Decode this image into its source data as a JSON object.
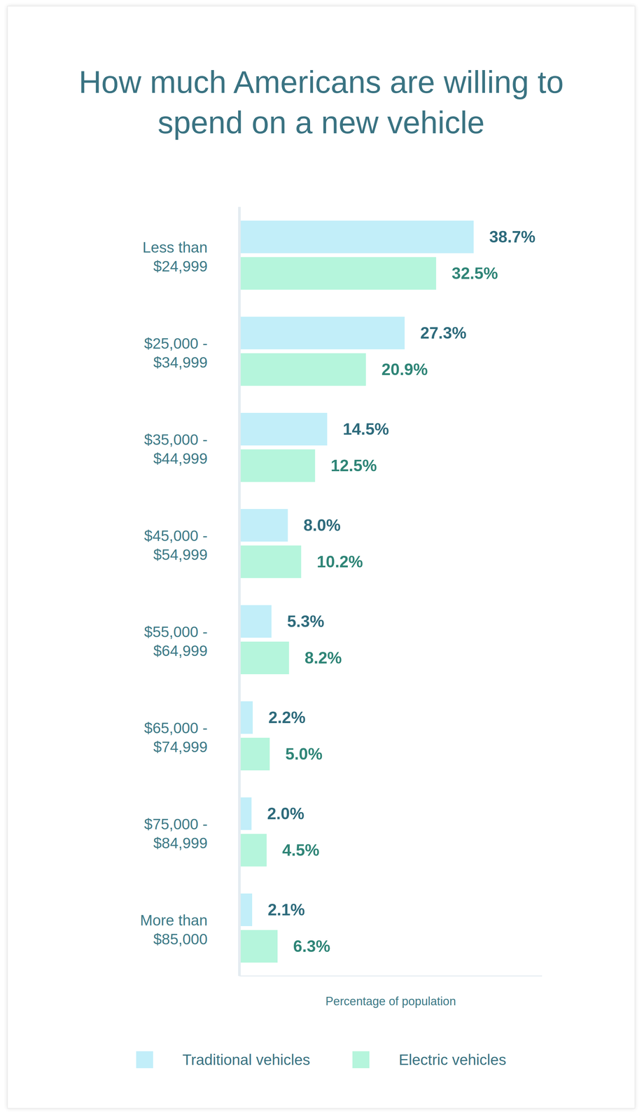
{
  "chart_data": {
    "type": "bar",
    "orientation": "horizontal",
    "title": "How much Americans are willing to spend on a new vehicle",
    "xlabel": "Percentage of population",
    "categories": [
      "Less than $24,999",
      "$25,000 - $34,999",
      "$35,000 - $44,999",
      "$45,000 - $54,999",
      "$55,000 - $64,999",
      "$65,000 - $74,999",
      "$75,000 - $84,999",
      "More than $85,000"
    ],
    "series": [
      {
        "name": "Traditional vehicles",
        "color": "#c2eef9",
        "values": [
          38.7,
          27.3,
          14.5,
          8.0,
          5.3,
          2.2,
          2.0,
          2.1
        ],
        "value_labels": [
          "38.7%",
          "27.3%",
          "14.5%",
          "8.0%",
          "5.3%",
          "2.2%",
          "2.0%",
          "2.1%"
        ]
      },
      {
        "name": "Electric vehicles",
        "color": "#b5f5dc",
        "values": [
          32.5,
          20.9,
          12.5,
          10.2,
          8.2,
          5.0,
          4.5,
          6.3
        ],
        "value_labels": [
          "32.5%",
          "20.9%",
          "12.5%",
          "10.2%",
          "8.2%",
          "5.0%",
          "4.5%",
          "6.3%"
        ]
      }
    ],
    "xlim": [
      0,
      50
    ],
    "data_labels": true,
    "tick_labels": "y",
    "legend": "bottom",
    "grid": false
  }
}
